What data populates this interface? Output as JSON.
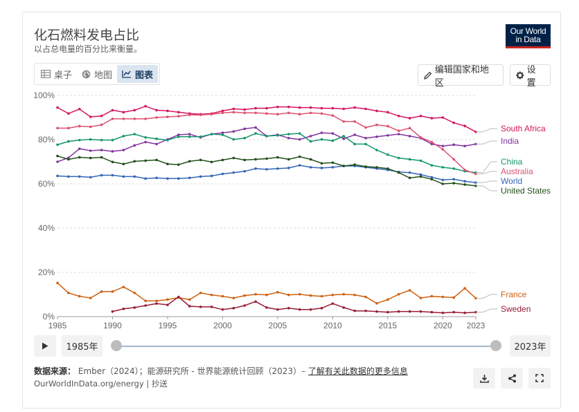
{
  "header": {
    "title": "化石燃料发电占比",
    "subtitle": "以占总电量的百分比来衡量。",
    "logo_line1": "Our World",
    "logo_line2": "in Data"
  },
  "tabs": [
    {
      "label": "桌子",
      "icon": "table-icon"
    },
    {
      "label": "地图",
      "icon": "globe-icon"
    },
    {
      "label": "图表",
      "icon": "line-chart-icon",
      "active": true
    }
  ],
  "toolbar": {
    "edit_countries_label": "编辑国家和地区",
    "settings_label": "设置"
  },
  "timeline": {
    "start_label": "1985年",
    "end_label": "2023年"
  },
  "footer": {
    "source_label": "数据来源：",
    "source_text": " Ember（2024）；能源研究所 - 世界能源统计回顾（2023）– ",
    "source_link": "了解有关此数据的更多信息",
    "site_text": "OurWorldInData.org/energy | 抄送"
  },
  "colors": {
    "South Africa": "#d6135f",
    "India": "#8334a0",
    "China": "#13966f",
    "Australia": "#dc5070",
    "World": "#3365b5",
    "United States": "#214f18",
    "France": "#cf6010",
    "Sweden": "#961a34"
  },
  "chart_data": {
    "type": "line",
    "title": "化石燃料发电占比",
    "xlabel": "",
    "ylabel": "",
    "xlim": [
      1985,
      2023
    ],
    "ylim": [
      0,
      100
    ],
    "yticks": [
      0,
      20,
      40,
      60,
      80,
      100
    ],
    "ytick_labels": [
      "0%",
      "20%",
      "40%",
      "60%",
      "80%",
      "100%"
    ],
    "xticks": [
      1985,
      1990,
      1995,
      2000,
      2005,
      2010,
      2015,
      2020,
      2023
    ],
    "xtick_labels": [
      "1985",
      "1990",
      "1995",
      "2000",
      "2005",
      "2010",
      "2015",
      "2020",
      "2023"
    ],
    "grid": "horizontal dashed",
    "legend": "right (line end labels)",
    "series": [
      {
        "name": "South Africa",
        "x": [
          1985,
          1986,
          1987,
          1988,
          1989,
          1990,
          1991,
          1992,
          1993,
          1994,
          1995,
          1996,
          1997,
          1998,
          1999,
          2000,
          2001,
          2002,
          2003,
          2004,
          2005,
          2006,
          2007,
          2008,
          2009,
          2010,
          2011,
          2012,
          2013,
          2014,
          2015,
          2016,
          2017,
          2018,
          2019,
          2020,
          2021,
          2022,
          2023
        ],
        "values": [
          94.5,
          91.8,
          93.8,
          90.3,
          90.7,
          93.3,
          92.4,
          93.3,
          95.1,
          93.3,
          93.0,
          92.4,
          91.8,
          91.5,
          91.8,
          93.0,
          93.9,
          93.6,
          94.2,
          94.2,
          94.8,
          94.8,
          94.5,
          94.5,
          94.2,
          94.2,
          93.9,
          94.5,
          93.9,
          93.0,
          92.4,
          90.7,
          89.7,
          90.7,
          89.7,
          90.0,
          87.6,
          86.2,
          83.5
        ]
      },
      {
        "name": "India",
        "x": [
          1985,
          1986,
          1987,
          1988,
          1989,
          1990,
          1991,
          1992,
          1993,
          1994,
          1995,
          1996,
          1997,
          1998,
          1999,
          2000,
          2001,
          2002,
          2003,
          2004,
          2005,
          2006,
          2007,
          2008,
          2009,
          2010,
          2011,
          2012,
          2013,
          2014,
          2015,
          2016,
          2017,
          2018,
          2019,
          2020,
          2021,
          2022,
          2023
        ],
        "values": [
          70.0,
          71.8,
          75.9,
          75.0,
          75.3,
          74.7,
          75.3,
          77.4,
          78.9,
          78.0,
          80.1,
          82.2,
          82.5,
          81.0,
          82.5,
          83.1,
          83.7,
          84.9,
          85.5,
          81.6,
          82.2,
          80.7,
          80.1,
          81.6,
          83.1,
          82.8,
          80.4,
          82.2,
          80.7,
          81.3,
          81.9,
          82.5,
          81.6,
          80.7,
          78.0,
          77.1,
          77.7,
          77.1,
          78.0
        ]
      },
      {
        "name": "China",
        "x": [
          1985,
          1986,
          1987,
          1988,
          1989,
          1990,
          1991,
          1992,
          1993,
          1994,
          1995,
          1996,
          1997,
          1998,
          1999,
          2000,
          2001,
          2002,
          2003,
          2004,
          2005,
          2006,
          2007,
          2008,
          2009,
          2010,
          2011,
          2012,
          2013,
          2014,
          2015,
          2016,
          2017,
          2018,
          2019,
          2020,
          2021,
          2022,
          2023
        ],
        "values": [
          77.7,
          79.2,
          79.8,
          80.1,
          79.8,
          79.8,
          81.6,
          82.5,
          81.0,
          80.4,
          79.8,
          81.3,
          81.3,
          81.3,
          82.5,
          82.2,
          80.1,
          80.7,
          82.8,
          81.6,
          81.9,
          82.5,
          82.8,
          79.2,
          80.1,
          79.5,
          81.6,
          78.0,
          78.0,
          75.3,
          73.2,
          71.7,
          71.1,
          70.5,
          68.4,
          67.5,
          66.9,
          65.7,
          65.1
        ]
      },
      {
        "name": "Australia",
        "x": [
          1985,
          1986,
          1987,
          1988,
          1989,
          1990,
          1991,
          1992,
          1993,
          1994,
          1995,
          1996,
          1997,
          1998,
          1999,
          2000,
          2001,
          2002,
          2003,
          2004,
          2005,
          2006,
          2007,
          2008,
          2009,
          2010,
          2011,
          2012,
          2013,
          2014,
          2015,
          2016,
          2017,
          2018,
          2019,
          2020,
          2021,
          2022,
          2023
        ],
        "values": [
          85.2,
          85.2,
          86.1,
          85.8,
          86.7,
          89.4,
          89.4,
          89.4,
          89.4,
          90.0,
          90.3,
          90.6,
          91.2,
          91.2,
          91.5,
          92.1,
          92.4,
          92.1,
          92.1,
          91.8,
          91.5,
          92.1,
          91.5,
          92.1,
          91.8,
          90.9,
          88.2,
          88.2,
          85.5,
          86.7,
          86.1,
          84.0,
          85.2,
          81.0,
          78.9,
          75.6,
          71.1,
          66.3,
          64.5
        ]
      },
      {
        "name": "World",
        "x": [
          1985,
          1986,
          1987,
          1988,
          1989,
          1990,
          1991,
          1992,
          1993,
          1994,
          1995,
          1996,
          1997,
          1998,
          1999,
          2000,
          2001,
          2002,
          2003,
          2004,
          2005,
          2006,
          2007,
          2008,
          2009,
          2010,
          2011,
          2012,
          2013,
          2014,
          2015,
          2016,
          2017,
          2018,
          2019,
          2020,
          2021,
          2022,
          2023
        ],
        "values": [
          63.6,
          63.3,
          63.3,
          63.0,
          63.9,
          63.9,
          63.3,
          63.3,
          62.4,
          62.7,
          62.4,
          62.4,
          62.7,
          63.3,
          63.6,
          64.5,
          65.1,
          65.7,
          66.9,
          66.6,
          66.9,
          67.2,
          68.4,
          67.5,
          67.2,
          67.5,
          68.1,
          68.1,
          67.5,
          66.9,
          66.3,
          65.4,
          65.1,
          64.2,
          63.0,
          61.8,
          62.1,
          61.2,
          60.6
        ]
      },
      {
        "name": "United States",
        "x": [
          1985,
          1986,
          1987,
          1988,
          1989,
          1990,
          1991,
          1992,
          1993,
          1994,
          1995,
          1996,
          1997,
          1998,
          1999,
          2000,
          2001,
          2002,
          2003,
          2004,
          2005,
          2006,
          2007,
          2008,
          2009,
          2010,
          2011,
          2012,
          2013,
          2014,
          2015,
          2016,
          2017,
          2018,
          2019,
          2020,
          2021,
          2022,
          2023
        ],
        "values": [
          72.6,
          71.1,
          72.0,
          71.7,
          72.0,
          69.9,
          69.0,
          70.2,
          70.5,
          70.8,
          69.0,
          68.7,
          70.2,
          70.8,
          69.9,
          70.8,
          71.7,
          70.8,
          71.1,
          71.4,
          72.0,
          71.1,
          72.3,
          71.1,
          69.3,
          69.6,
          68.1,
          68.7,
          67.8,
          67.5,
          66.9,
          65.1,
          62.7,
          63.3,
          62.1,
          60.0,
          60.3,
          59.7,
          59.1
        ]
      },
      {
        "name": "France",
        "x": [
          1985,
          1986,
          1987,
          1988,
          1989,
          1990,
          1991,
          1992,
          1993,
          1994,
          1995,
          1996,
          1997,
          1998,
          1999,
          2000,
          2001,
          2002,
          2003,
          2004,
          2005,
          2006,
          2007,
          2008,
          2009,
          2010,
          2011,
          2012,
          2013,
          2014,
          2015,
          2016,
          2017,
          2018,
          2019,
          2020,
          2021,
          2022,
          2023
        ],
        "values": [
          15.2,
          10.7,
          9.2,
          8.4,
          11.3,
          11.3,
          13.4,
          10.7,
          7.1,
          7.1,
          7.7,
          8.6,
          7.7,
          10.7,
          9.8,
          9.2,
          8.4,
          9.5,
          10.1,
          9.8,
          11.0,
          9.8,
          10.1,
          9.5,
          9.2,
          9.8,
          10.1,
          9.8,
          8.9,
          6.0,
          7.7,
          10.1,
          11.9,
          8.4,
          9.2,
          8.9,
          8.6,
          12.8,
          8.3
        ]
      },
      {
        "name": "Sweden",
        "x": [
          1990,
          1991,
          1992,
          1993,
          1994,
          1995,
          1996,
          1997,
          1998,
          1999,
          2000,
          2001,
          2002,
          2003,
          2004,
          2005,
          2006,
          2007,
          2008,
          2009,
          2010,
          2011,
          2012,
          2013,
          2014,
          2015,
          2016,
          2017,
          2018,
          2019,
          2020,
          2021,
          2022,
          2023
        ],
        "values": [
          2.3,
          3.5,
          4.1,
          5.0,
          5.9,
          5.3,
          8.9,
          4.7,
          4.4,
          4.4,
          3.2,
          3.8,
          5.0,
          6.8,
          4.1,
          3.2,
          3.8,
          3.2,
          3.2,
          3.8,
          5.9,
          4.1,
          2.6,
          2.6,
          2.3,
          2.0,
          2.3,
          2.3,
          2.3,
          2.0,
          1.7,
          2.0,
          1.7,
          2.0
        ]
      }
    ]
  }
}
